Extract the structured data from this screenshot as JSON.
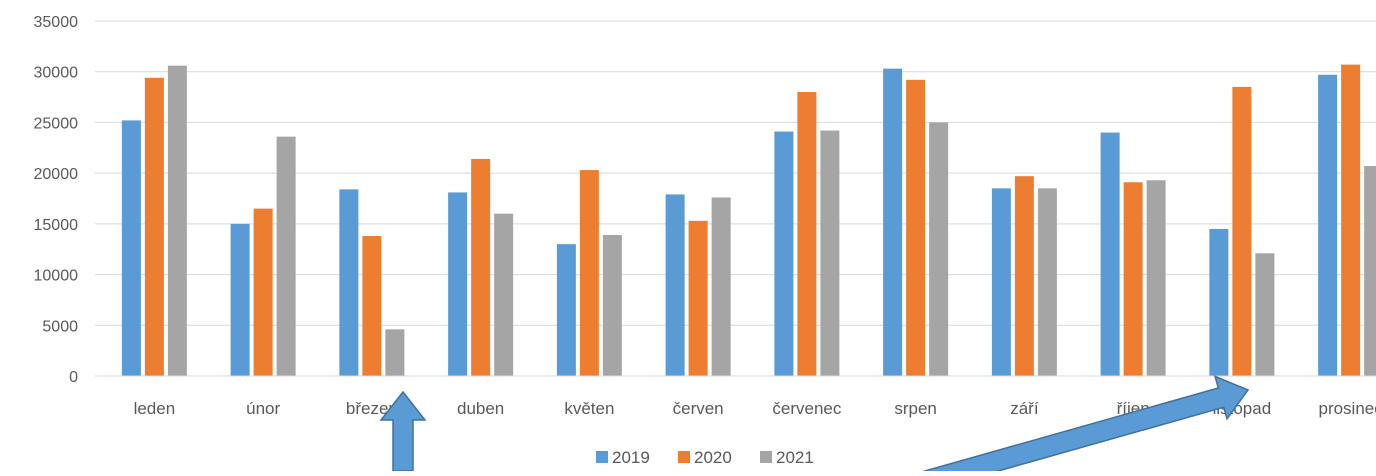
{
  "chart_data": {
    "type": "bar",
    "title": "",
    "xlabel": "",
    "ylabel": "",
    "ylim": [
      0,
      35000
    ],
    "yticks": [
      0,
      5000,
      10000,
      15000,
      20000,
      25000,
      30000,
      35000
    ],
    "grid": true,
    "legend_position": "bottom",
    "categories": [
      "leden",
      "únor",
      "březen",
      "duben",
      "květen",
      "červen",
      "červenec",
      "srpen",
      "září",
      "říjen",
      "listopad",
      "prosinec"
    ],
    "series": [
      {
        "name": "2019",
        "color": "#5B9BD5",
        "values": [
          25200,
          15000,
          18400,
          18100,
          13000,
          17900,
          24100,
          30300,
          18500,
          24000,
          14500,
          29700
        ]
      },
      {
        "name": "2020",
        "color": "#ED7D31",
        "values": [
          29400,
          16500,
          13800,
          21400,
          20300,
          15300,
          28000,
          29200,
          19700,
          19100,
          28500,
          30700
        ]
      },
      {
        "name": "2021",
        "color": "#A5A5A5",
        "values": [
          30600,
          23600,
          4600,
          16000,
          13900,
          17600,
          24200,
          25000,
          18500,
          19300,
          12100,
          20700
        ]
      }
    ],
    "annotations": [
      {
        "type": "arrow",
        "color": "#5B9BD5",
        "points_to": "březen"
      },
      {
        "type": "arrow",
        "color": "#5B9BD5",
        "points_to": "listopad"
      }
    ]
  }
}
